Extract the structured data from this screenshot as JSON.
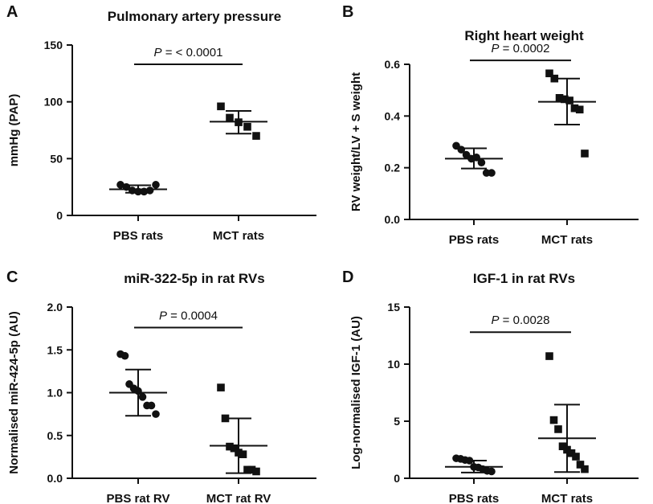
{
  "figure": {
    "panel_letters": [
      "A",
      "B",
      "C",
      "D"
    ]
  },
  "chart_data": [
    {
      "type": "scatter",
      "panel": "A",
      "title": "Pulmonary artery pressure",
      "xlabel": "",
      "ylabel": "mmHg (PAP)",
      "ylim": [
        0,
        150
      ],
      "yticks": [
        0,
        50,
        100,
        150
      ],
      "ytick_labels": [
        "0",
        "50",
        "100",
        "150"
      ],
      "categories": [
        "PBS rats",
        "MCT rats"
      ],
      "series": [
        {
          "category": "PBS rats",
          "marker": "circle",
          "points": [
            27,
            25,
            22,
            21,
            21,
            22,
            27
          ],
          "mean": 23,
          "sd_upper": 26.5,
          "sd_lower": 20
        },
        {
          "category": "MCT rats",
          "marker": "square",
          "points": [
            96,
            86,
            82,
            78,
            70
          ],
          "mean": 82.5,
          "sd_upper": 92,
          "sd_lower": 72
        }
      ],
      "annotation": {
        "label": "P",
        "text": " = < 0.0001",
        "y": 133
      }
    },
    {
      "type": "scatter",
      "panel": "B",
      "title": "Right heart weight",
      "xlabel": "",
      "ylabel": "RV weight/LV + S weight",
      "ylim": [
        0,
        0.6
      ],
      "yticks": [
        0,
        0.2,
        0.4,
        0.6
      ],
      "ytick_labels": [
        "0.0",
        "0.2",
        "0.4",
        "0.6"
      ],
      "categories": [
        "PBS rats",
        "MCT rats"
      ],
      "series": [
        {
          "category": "PBS rats",
          "marker": "circle",
          "points": [
            0.285,
            0.27,
            0.25,
            0.235,
            0.24,
            0.22,
            0.18,
            0.18
          ],
          "mean": 0.235,
          "sd_upper": 0.275,
          "sd_lower": 0.197
        },
        {
          "category": "MCT rats",
          "marker": "square",
          "points": [
            0.565,
            0.545,
            0.47,
            0.465,
            0.46,
            0.43,
            0.425,
            0.255
          ],
          "mean": 0.455,
          "sd_upper": 0.545,
          "sd_lower": 0.367
        }
      ],
      "annotation": {
        "label": "P",
        "text": " = 0.0002",
        "y": 0.615
      }
    },
    {
      "type": "scatter",
      "panel": "C",
      "title": "miR-322-5p in rat RVs",
      "xlabel": "",
      "ylabel": "Normalised miR-424-5p (AU)",
      "ylim": [
        0,
        2.0
      ],
      "yticks": [
        0,
        0.5,
        1.0,
        1.5,
        2.0
      ],
      "ytick_labels": [
        "0.0",
        "0.5",
        "1.0",
        "1.5",
        "2.0"
      ],
      "categories": [
        "PBS rat RV",
        "MCT rat RV"
      ],
      "series": [
        {
          "category": "PBS rat RV",
          "marker": "circle",
          "points": [
            1.45,
            1.43,
            1.1,
            1.05,
            1.02,
            0.95,
            0.85,
            0.85,
            0.75
          ],
          "mean": 1.0,
          "sd_upper": 1.27,
          "sd_lower": 0.73
        },
        {
          "category": "MCT rat RV",
          "marker": "square",
          "points": [
            1.06,
            0.7,
            0.37,
            0.35,
            0.3,
            0.28,
            0.1,
            0.1,
            0.08
          ],
          "mean": 0.38,
          "sd_upper": 0.7,
          "sd_lower": 0.06
        }
      ],
      "annotation": {
        "label": "P",
        "text": " = 0.0004",
        "y": 1.76
      }
    },
    {
      "type": "scatter",
      "panel": "D",
      "title": "IGF-1 in rat RVs",
      "xlabel": "",
      "ylabel": "Log-normalised IGF-1 (AU)",
      "ylim": [
        0,
        15
      ],
      "yticks": [
        0,
        5,
        10,
        15
      ],
      "ytick_labels": [
        "0",
        "5",
        "10",
        "15"
      ],
      "categories": [
        "PBS rats",
        "MCT rats"
      ],
      "series": [
        {
          "category": "PBS rats",
          "marker": "circle",
          "points": [
            1.75,
            1.7,
            1.6,
            1.55,
            1.0,
            0.95,
            0.8,
            0.65,
            0.6
          ],
          "mean": 1.0,
          "sd_upper": 1.55,
          "sd_lower": 0.5
        },
        {
          "category": "MCT rats",
          "marker": "square",
          "points": [
            10.7,
            5.1,
            4.3,
            2.8,
            2.5,
            2.2,
            1.9,
            1.2,
            0.8
          ],
          "mean": 3.5,
          "sd_upper": 6.45,
          "sd_lower": 0.55
        }
      ],
      "annotation": {
        "label": "P",
        "text": " = 0.0028",
        "y": 12.8
      }
    }
  ]
}
